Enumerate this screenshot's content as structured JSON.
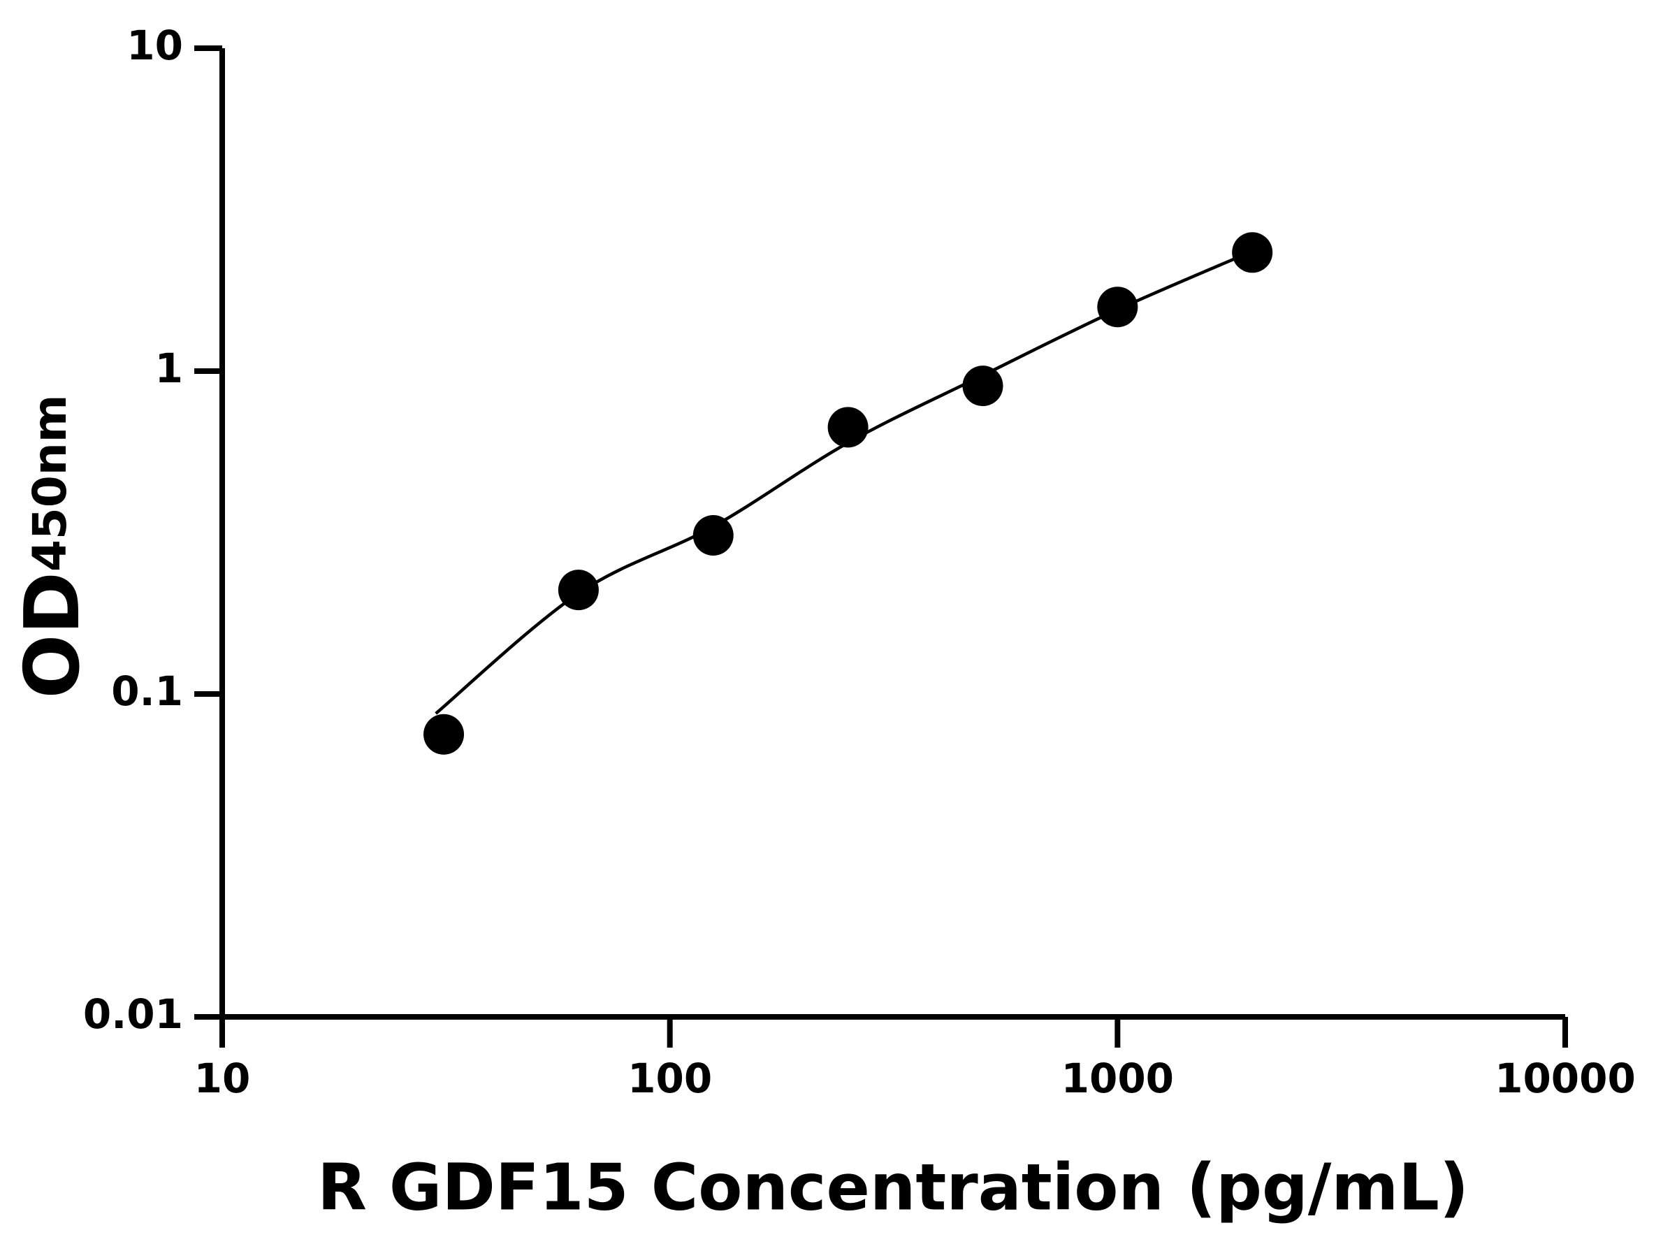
{
  "chart_data": {
    "type": "scatter",
    "xlabel": "R GDF15 Concentration (pg/mL)",
    "ylabel": "OD",
    "ylabel_sub": "450nm",
    "xscale": "log",
    "yscale": "log",
    "xlim": [
      10,
      10000
    ],
    "xticks": [
      10,
      100,
      1000,
      10000
    ],
    "ylim": [
      0.01,
      10
    ],
    "yticks": [
      0.01,
      0.1,
      1,
      10
    ],
    "series": [
      {
        "color": "#000000",
        "x": [
          31.25,
          62.5,
          125,
          250,
          500,
          1000,
          2000
        ],
        "values": [
          0.075,
          0.21,
          0.31,
          0.67,
          0.9,
          1.58,
          2.33
        ]
      }
    ],
    "fit": {
      "color": "#000000",
      "x": [
        30,
        62.5,
        125,
        250,
        500,
        1000,
        2000
      ],
      "values": [
        0.087,
        0.205,
        0.33,
        0.6,
        0.97,
        1.55,
        2.35
      ]
    }
  }
}
